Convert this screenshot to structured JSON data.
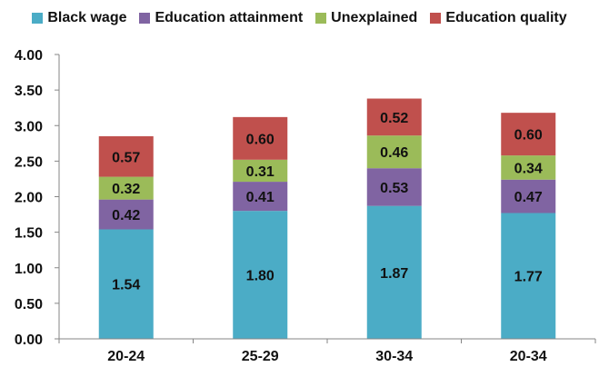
{
  "chart_data": {
    "type": "bar",
    "stacked": true,
    "categories": [
      "20-24",
      "25-29",
      "30-34",
      "20-34"
    ],
    "series": [
      {
        "name": "Black wage",
        "color": "#4bacc6",
        "values": [
          1.54,
          1.8,
          1.87,
          1.77
        ]
      },
      {
        "name": "Education attainment",
        "color": "#8064a2",
        "values": [
          0.42,
          0.41,
          0.53,
          0.47
        ]
      },
      {
        "name": "Unexplained",
        "color": "#9bbb59",
        "values": [
          0.32,
          0.31,
          0.46,
          0.34
        ]
      },
      {
        "name": "Education quality",
        "color": "#c0504d",
        "values": [
          0.57,
          0.6,
          0.52,
          0.6
        ]
      }
    ],
    "yticks": [
      "0.00",
      "0.50",
      "1.00",
      "1.50",
      "2.00",
      "2.50",
      "3.00",
      "3.50",
      "4.00"
    ],
    "ylim": [
      0,
      4
    ],
    "grid": false,
    "legend_position": "top",
    "title": "",
    "xlabel": "",
    "ylabel": ""
  }
}
